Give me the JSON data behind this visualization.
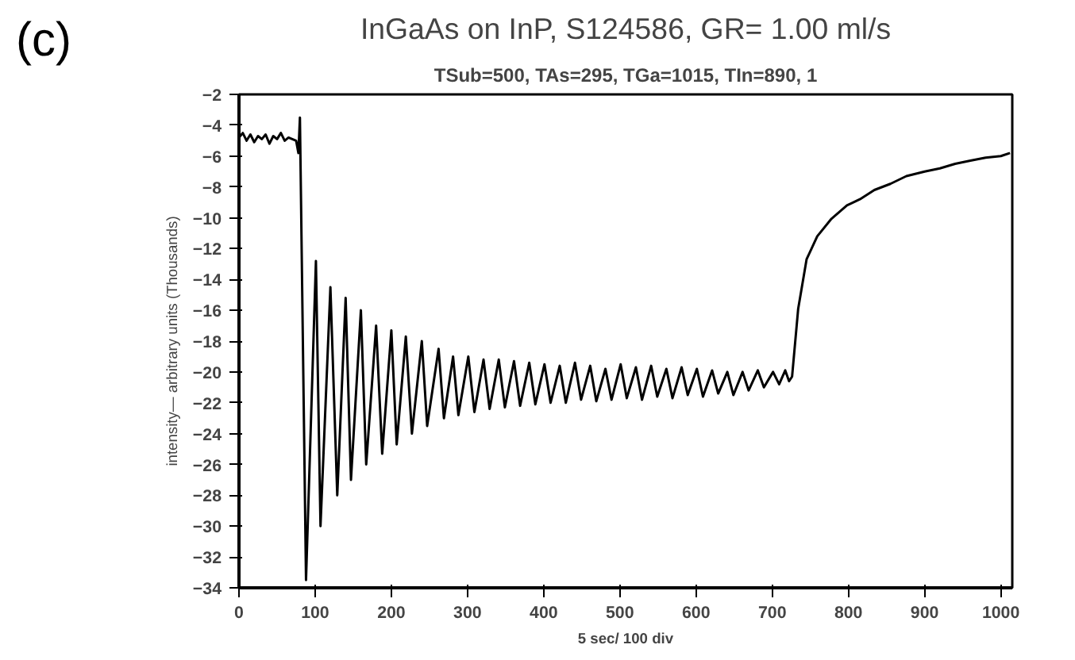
{
  "chart_data": {
    "type": "line",
    "title": "InGaAs on InP, S124586, GR= 1.00 ml/s",
    "subtitle": "TSub=500, TAs=295, TGa=1015, TIn=890, 1",
    "xlabel": "5 sec/ 100 div",
    "ylabel": "intensity— arbitrary units (Thousands)",
    "annotations": [
      "(c)"
    ],
    "x": [
      0,
      5,
      10,
      15,
      20,
      25,
      30,
      35,
      40,
      45,
      50,
      55,
      60,
      65,
      70,
      75,
      78,
      80,
      88,
      101,
      107,
      120,
      129,
      140,
      147,
      160,
      167,
      180,
      188,
      200,
      207,
      219,
      227,
      240,
      247,
      262,
      269,
      281,
      288,
      301,
      309,
      321,
      329,
      341,
      349,
      361,
      369,
      381,
      389,
      401,
      409,
      421,
      429,
      441,
      449,
      461,
      469,
      481,
      489,
      501,
      509,
      521,
      529,
      541,
      549,
      561,
      569,
      581,
      589,
      601,
      609,
      621,
      629,
      641,
      649,
      661,
      669,
      681,
      689,
      701,
      709,
      717,
      722,
      726,
      734,
      745,
      759,
      777,
      798,
      815,
      834,
      855,
      876,
      900,
      920,
      940,
      960,
      980,
      1000,
      1012
    ],
    "series": [
      {
        "color": "#000000",
        "values": [
          -4.8,
          -4.5,
          -5.0,
          -4.6,
          -5.1,
          -4.7,
          -4.9,
          -4.6,
          -5.2,
          -4.7,
          -4.9,
          -4.5,
          -5.0,
          -4.8,
          -4.9,
          -5.0,
          -5.8,
          -3.5,
          -33.5,
          -12.8,
          -30,
          -14.5,
          -28,
          -15.2,
          -27,
          -16,
          -26,
          -17,
          -25.3,
          -17.3,
          -24.7,
          -17.7,
          -24,
          -18,
          -23.5,
          -18.5,
          -23,
          -19,
          -22.8,
          -19,
          -22.6,
          -19.2,
          -22.4,
          -19.2,
          -22.3,
          -19.3,
          -22.2,
          -19.4,
          -22.1,
          -19.5,
          -22,
          -19.6,
          -22,
          -19.4,
          -21.8,
          -19.6,
          -21.9,
          -19.8,
          -21.8,
          -19.5,
          -21.7,
          -19.7,
          -21.8,
          -19.6,
          -21.6,
          -19.8,
          -21.7,
          -19.7,
          -21.5,
          -19.8,
          -21.6,
          -19.9,
          -21.4,
          -20,
          -21.5,
          -20,
          -21.2,
          -19.9,
          -21,
          -20,
          -20.8,
          -19.9,
          -20.6,
          -20.3,
          -15.9,
          -12.7,
          -11.2,
          -10.1,
          -9.2,
          -8.8,
          -8.2,
          -7.8,
          -7.3,
          -7.0,
          -6.8,
          -6.5,
          -6.3,
          -6.1,
          -6.0,
          -5.8
        ]
      }
    ],
    "xlim": [
      0,
      1015
    ],
    "ylim": [
      -34,
      -2
    ],
    "xticks": [
      0,
      100,
      200,
      300,
      400,
      500,
      600,
      700,
      800,
      900,
      1000
    ],
    "yticks": [
      -34,
      -32,
      -30,
      -28,
      -26,
      -24,
      -22,
      -20,
      -18,
      -16,
      -14,
      -12,
      -10,
      -8,
      -6,
      -4,
      -2
    ],
    "grid": false,
    "marker": "none",
    "line_style": "solid"
  }
}
